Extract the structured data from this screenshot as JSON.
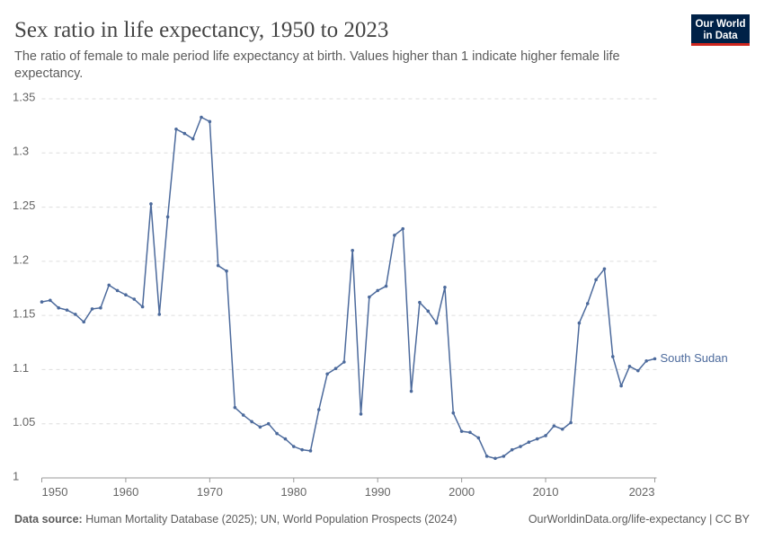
{
  "chart_data": {
    "type": "line",
    "title": "Sex ratio in life expectancy, 1950 to 2023",
    "subtitle": [
      "The ratio of female to male period life expectancy at birth. Values higher than 1 indicate higher female life",
      "expectancy."
    ],
    "logo": [
      "Our World",
      "in Data"
    ],
    "source_label": "Data source:",
    "source": "Human Mortality Database (2025); UN, World Population Prospects (2024)",
    "link": "OurWorldinData.org/life-expectancy | CC BY",
    "x": [
      1950,
      1951,
      1952,
      1953,
      1954,
      1955,
      1956,
      1957,
      1958,
      1959,
      1960,
      1961,
      1962,
      1963,
      1964,
      1965,
      1966,
      1967,
      1968,
      1969,
      1970,
      1971,
      1972,
      1973,
      1974,
      1975,
      1976,
      1977,
      1978,
      1979,
      1980,
      1981,
      1982,
      1983,
      1984,
      1985,
      1986,
      1987,
      1988,
      1989,
      1990,
      1991,
      1992,
      1993,
      1994,
      1995,
      1996,
      1997,
      1998,
      1999,
      2000,
      2001,
      2002,
      2003,
      2004,
      2005,
      2006,
      2007,
      2008,
      2009,
      2010,
      2011,
      2012,
      2013,
      2014,
      2015,
      2016,
      2017,
      2018,
      2019,
      2020,
      2021,
      2022,
      2023
    ],
    "series": [
      {
        "name": "South Sudan",
        "color": "#4c6a9c",
        "values": [
          1.1625,
          1.164,
          1.157,
          1.155,
          1.151,
          1.144,
          1.156,
          1.157,
          1.178,
          1.173,
          1.169,
          1.165,
          1.158,
          1.253,
          1.151,
          1.241,
          1.322,
          1.318,
          1.313,
          1.333,
          1.329,
          1.196,
          1.191,
          1.065,
          1.058,
          1.052,
          1.047,
          1.05,
          1.041,
          1.036,
          1.029,
          1.026,
          1.025,
          1.063,
          1.096,
          1.101,
          1.107,
          1.21,
          1.059,
          1.167,
          1.173,
          1.177,
          1.224,
          1.23,
          1.08,
          1.162,
          1.154,
          1.143,
          1.176,
          1.06,
          1.043,
          1.042,
          1.037,
          1.02,
          1.018,
          1.02,
          1.026,
          1.029,
          1.033,
          1.036,
          1.039,
          1.048,
          1.045,
          1.051,
          1.143,
          1.161,
          1.183,
          1.193,
          1.112,
          1.085,
          1.103,
          1.099,
          1.108,
          1.11
        ]
      }
    ],
    "xlim": [
      1950,
      2023
    ],
    "xticks": [
      1950,
      1960,
      1970,
      1980,
      1990,
      2000,
      2010,
      2023
    ],
    "ylim": [
      1,
      1.35
    ],
    "yticks": [
      1,
      1.05,
      1.1,
      1.15,
      1.2,
      1.25,
      1.3,
      1.35
    ],
    "grid": true
  }
}
